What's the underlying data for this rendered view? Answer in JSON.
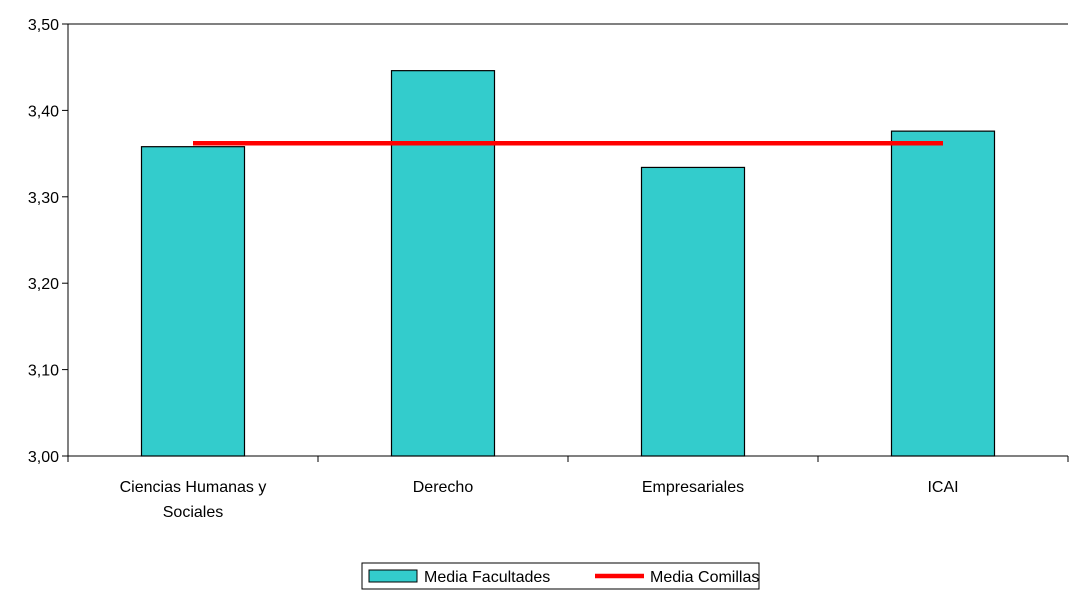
{
  "chart_data": {
    "type": "bar",
    "categories": [
      [
        "Ciencias Humanas y",
        "Sociales"
      ],
      [
        "Derecho"
      ],
      [
        "Empresariales"
      ],
      [
        "ICAI"
      ]
    ],
    "series": [
      {
        "name": "Media Facultades",
        "kind": "bar",
        "values": [
          3.358,
          3.446,
          3.334,
          3.376
        ],
        "color": "#33CCCC"
      },
      {
        "name": "Media Comillas",
        "kind": "line",
        "values": [
          3.362,
          3.362,
          3.362,
          3.362
        ],
        "color": "#FF0000"
      }
    ],
    "ylim": [
      3.0,
      3.5
    ],
    "yticks": [
      3.0,
      3.1,
      3.2,
      3.3,
      3.4,
      3.5
    ],
    "ytick_labels": [
      "3,00",
      "3,10",
      "3,20",
      "3,30",
      "3,40",
      "3,50"
    ],
    "grid": "top border line only",
    "legend_position": "bottom-center"
  }
}
